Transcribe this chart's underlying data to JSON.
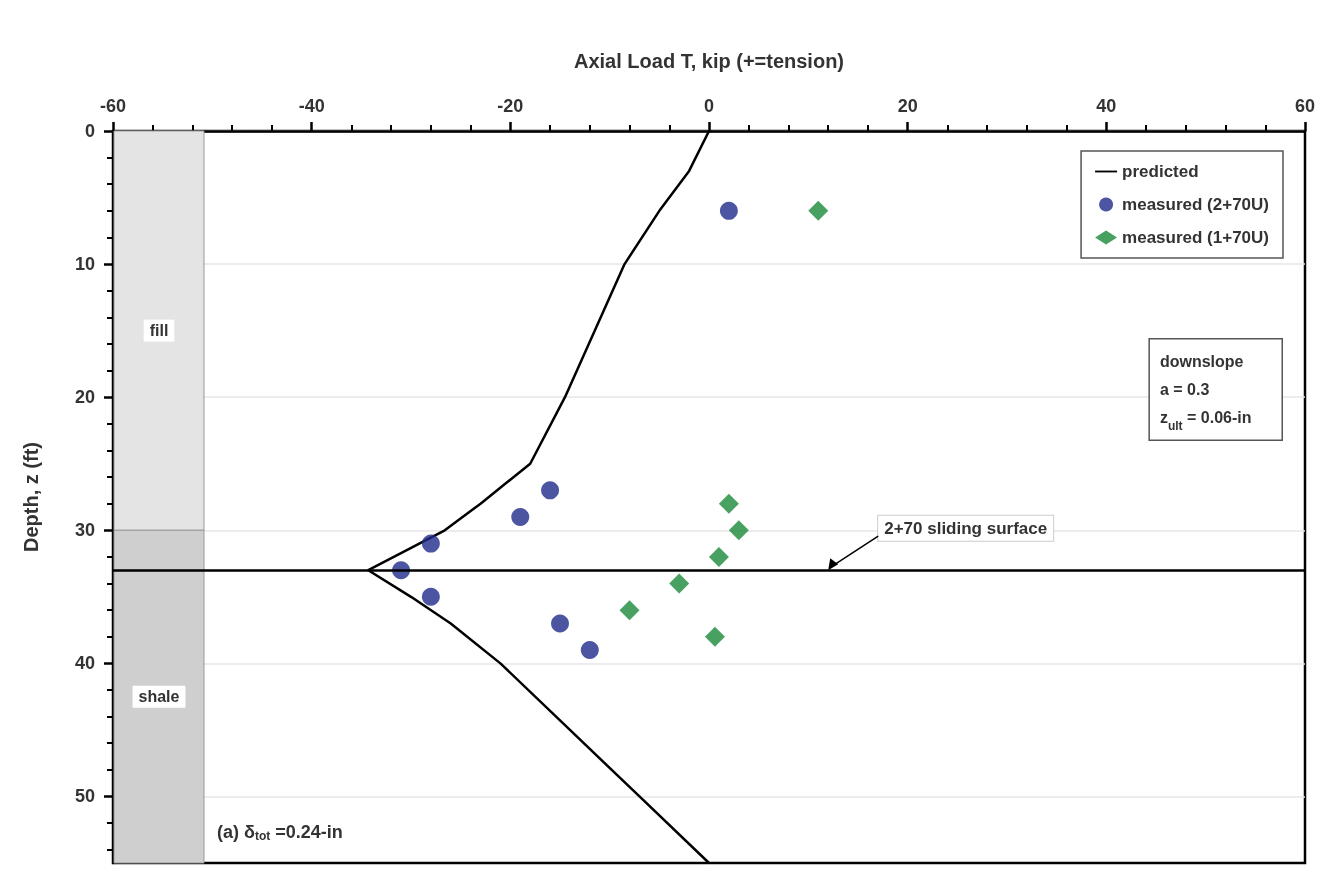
{
  "chart_data": {
    "type": "scatter",
    "xlabel": "Axial Load T, kip (+=tension)",
    "ylabel": "Depth, z (ft)",
    "xlim": [
      -60,
      60
    ],
    "xticks": [
      -60,
      -40,
      -20,
      0,
      20,
      40,
      60
    ],
    "ylim": [
      55,
      0
    ],
    "yticks": [
      0,
      10,
      20,
      30,
      40,
      50
    ],
    "grid": "y",
    "legend": "top right",
    "series": [
      {
        "name": "predicted",
        "type": "line",
        "marker": "none",
        "line_style": "solid",
        "color": "#000000",
        "x": [
          0,
          -2,
          -5,
          -8.5,
          -14.5,
          -18,
          -23,
          -26.6,
          -34.3,
          -30,
          -26,
          -21,
          -14,
          -7,
          0
        ],
        "values": [
          0,
          3,
          6,
          10,
          20,
          25,
          28,
          30,
          33,
          35,
          37,
          40,
          45,
          50,
          55
        ]
      },
      {
        "name": "measured (2+70U)",
        "marker": "circle",
        "color": "#1f2a8a",
        "x": [
          2,
          -16,
          -19,
          -28,
          -31,
          -28,
          -15,
          -12
        ],
        "values": [
          6,
          27,
          29,
          31,
          33,
          35,
          37,
          39
        ]
      },
      {
        "name": "measured (1+70U)",
        "marker": "diamond",
        "color": "#1a8a3a",
        "x": [
          11,
          2,
          3,
          1,
          -3,
          -8,
          0.6
        ],
        "values": [
          6,
          28,
          30,
          32,
          34,
          36,
          38
        ]
      }
    ],
    "ref_lines": [
      {
        "axis": "y",
        "value": 33,
        "label": "2+70 sliding surface",
        "color": "#000000",
        "line_style": "solid"
      }
    ],
    "bands": [
      {
        "axis": "y",
        "from": 0,
        "to": 30,
        "label": "fill",
        "color": "#e4e4e4"
      },
      {
        "axis": "y",
        "from": 30,
        "to": 55,
        "label": "shale",
        "color": "#cfcfcf"
      }
    ],
    "annotations": [
      "downslope\na = 0.3\nz$_{ult}$ = 0.06-in",
      "(a) δ$_{tot}$ =0.24-in"
    ]
  }
}
